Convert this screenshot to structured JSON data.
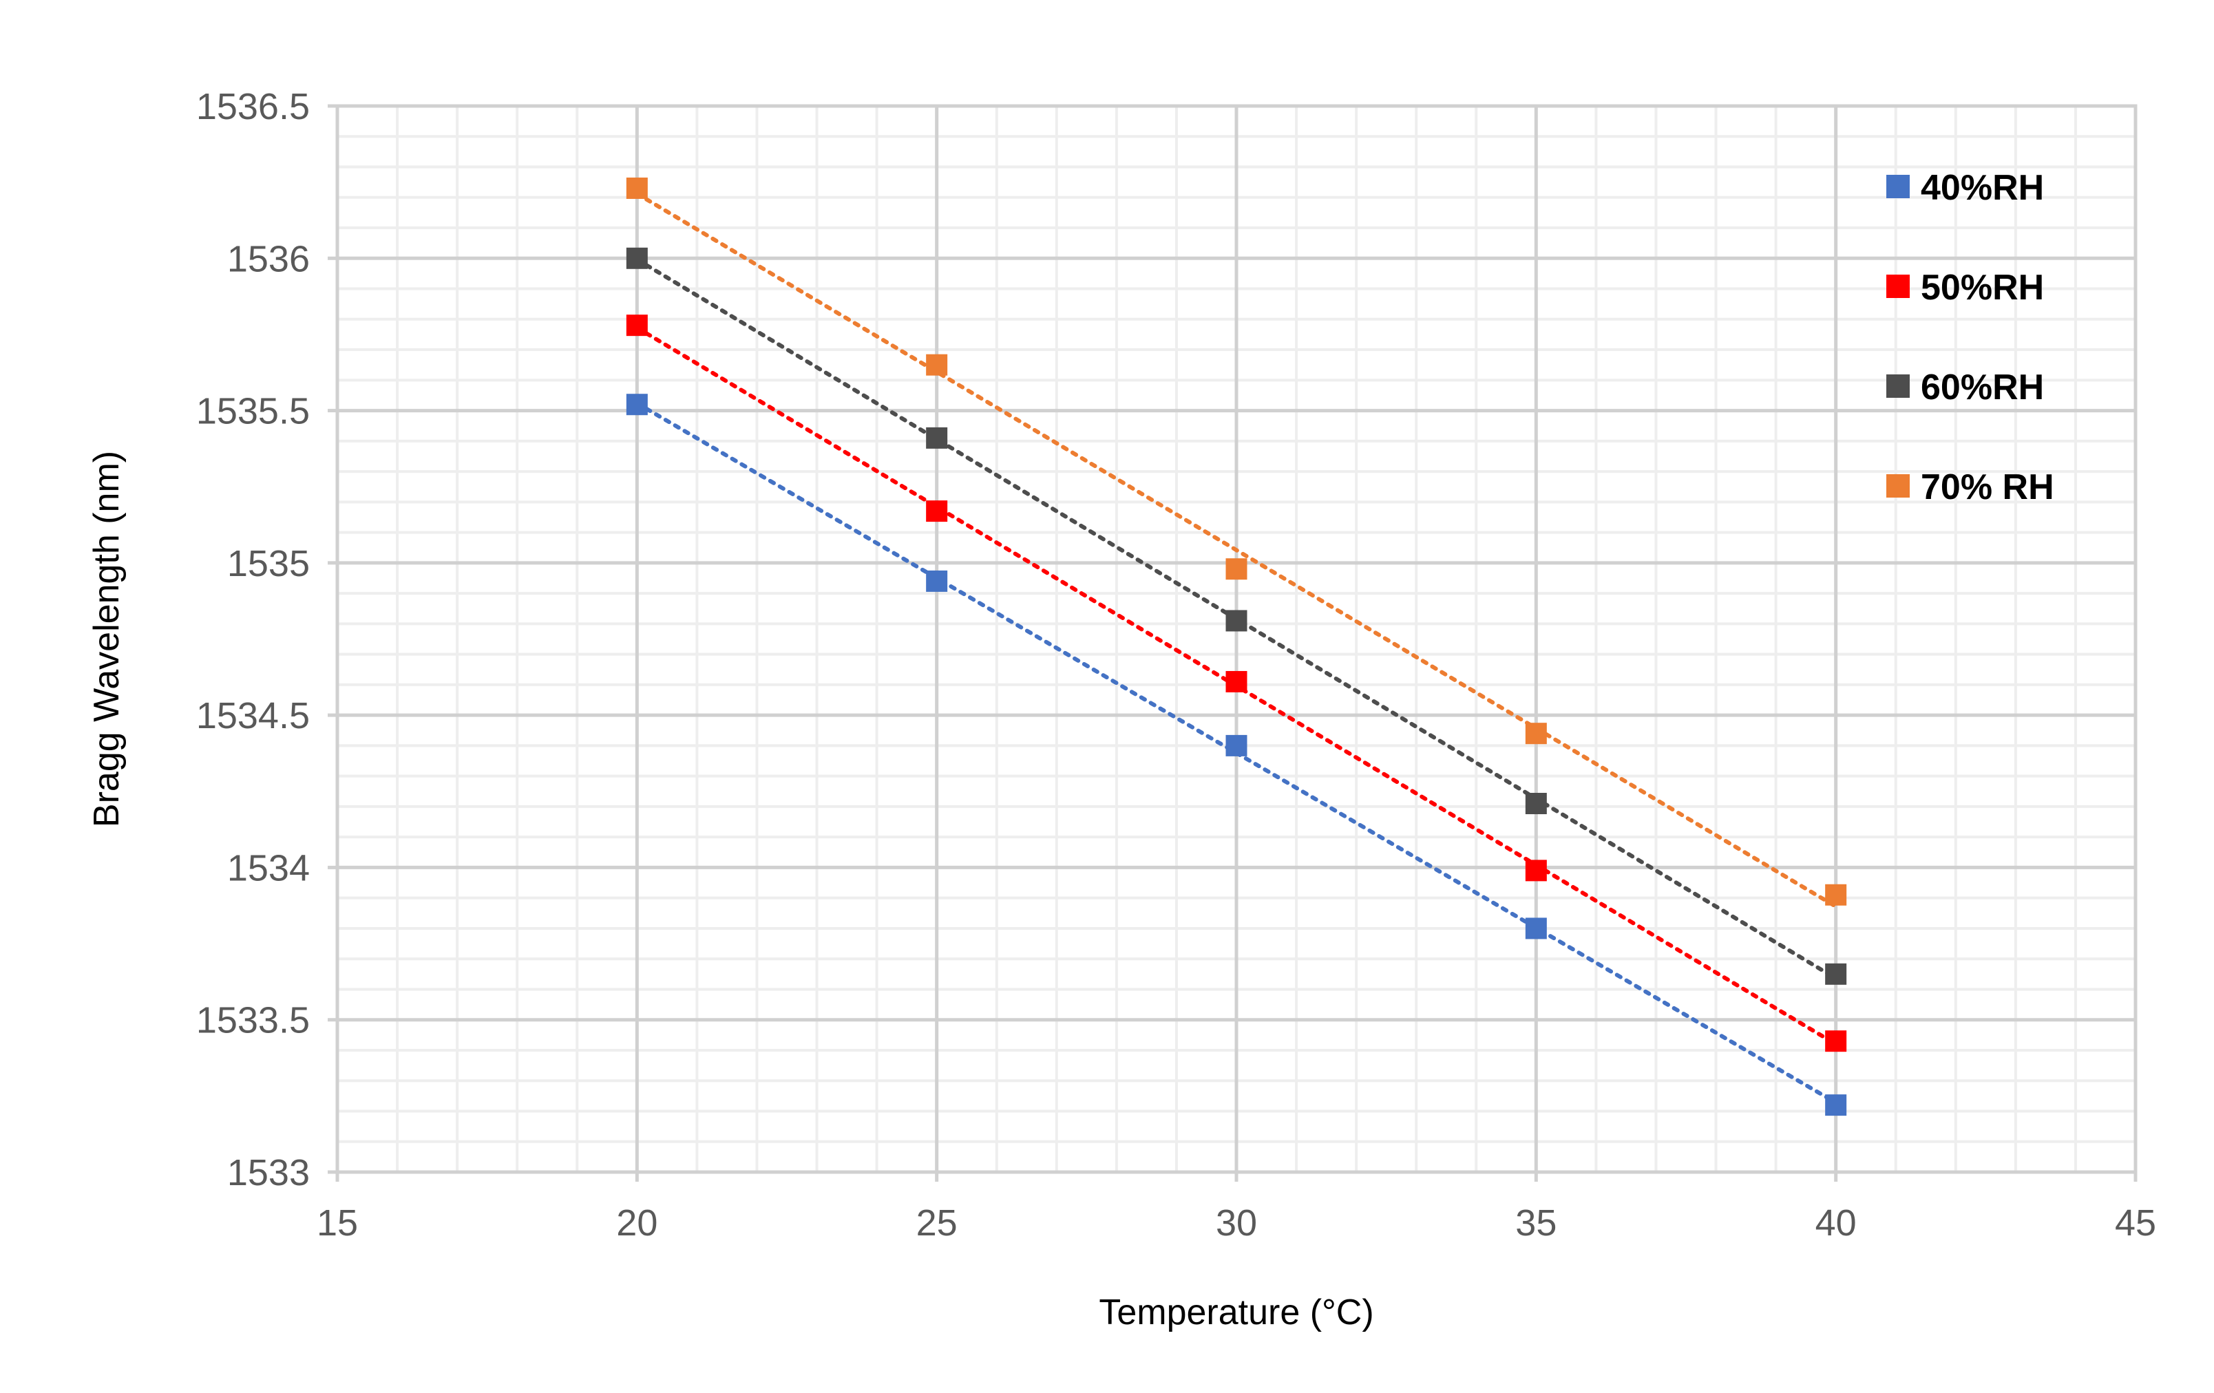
{
  "chart_data": {
    "type": "scatter",
    "title": "",
    "xlabel": "Temperature (°C)",
    "ylabel": "Bragg Wavelength (nm)",
    "xlim": [
      15,
      45
    ],
    "ylim": [
      1533,
      1536.5
    ],
    "x_ticks": [
      "15",
      "20",
      "25",
      "30",
      "35",
      "40",
      "45"
    ],
    "y_ticks": [
      "1533",
      "1533.5",
      "1534",
      "1534.5",
      "1535",
      "1535.5",
      "1536",
      "1536.5"
    ],
    "grid": true,
    "legend_position": "top-right",
    "trendline_style": "dotted",
    "x": [
      20,
      25,
      30,
      35,
      40
    ],
    "series": [
      {
        "name": "40%RH",
        "color": "#4472c4",
        "values": [
          1535.52,
          1534.94,
          1534.4,
          1533.8,
          1533.22
        ]
      },
      {
        "name": "50%RH",
        "color": "#ff0000",
        "values": [
          1535.78,
          1535.17,
          1534.61,
          1533.99,
          1533.43
        ]
      },
      {
        "name": "60%RH",
        "color": "#4d4d4d",
        "values": [
          1536.0,
          1535.41,
          1534.81,
          1534.21,
          1533.65
        ]
      },
      {
        "name": "70% RH",
        "color": "#ed7d31",
        "values": [
          1536.23,
          1535.65,
          1534.98,
          1534.44,
          1533.91
        ]
      }
    ]
  }
}
